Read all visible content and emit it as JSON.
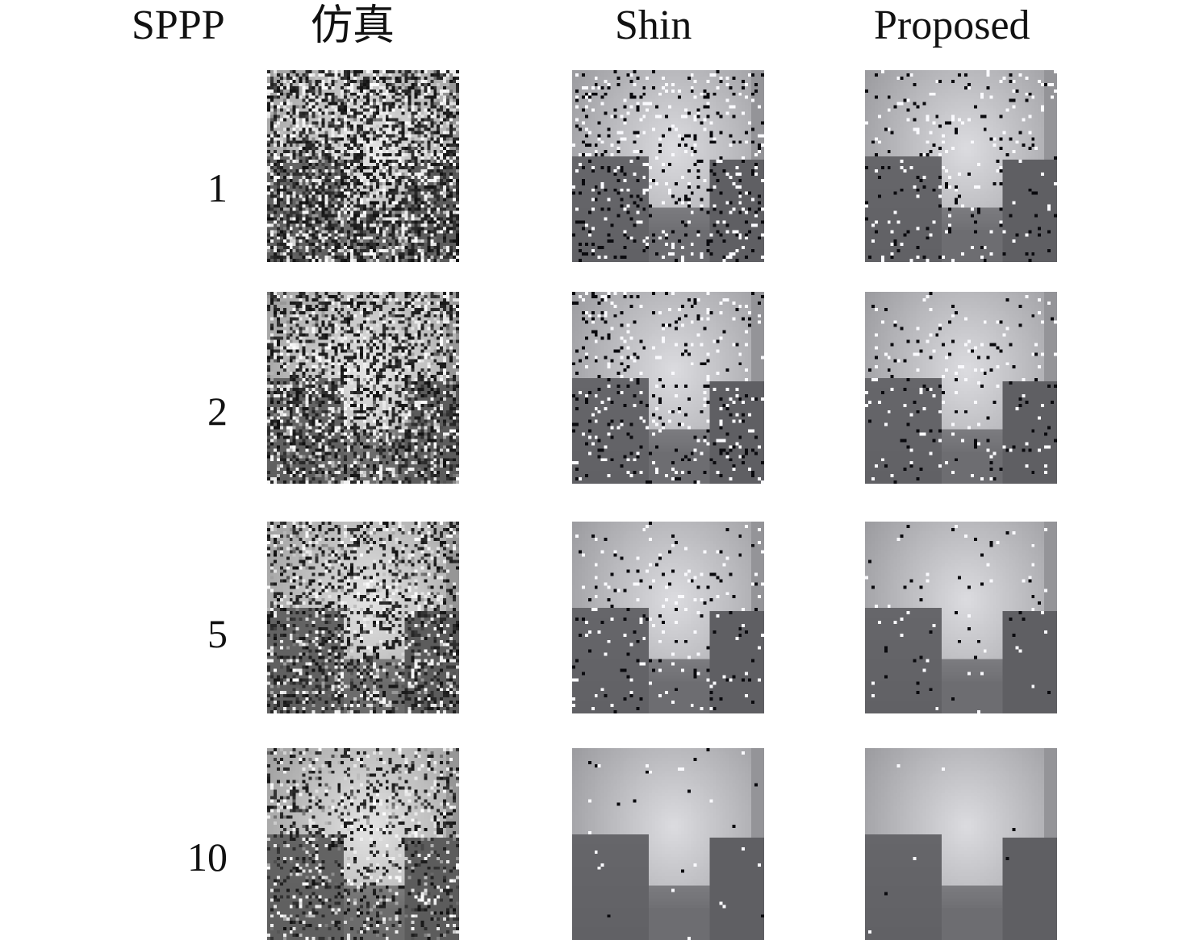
{
  "header": {
    "row_param": "SPPP",
    "columns": [
      "仿真",
      "Shin",
      "Proposed"
    ]
  },
  "rows": [
    {
      "sppp": "1"
    },
    {
      "sppp": "2"
    },
    {
      "sppp": "5"
    },
    {
      "sppp": "10"
    }
  ]
}
